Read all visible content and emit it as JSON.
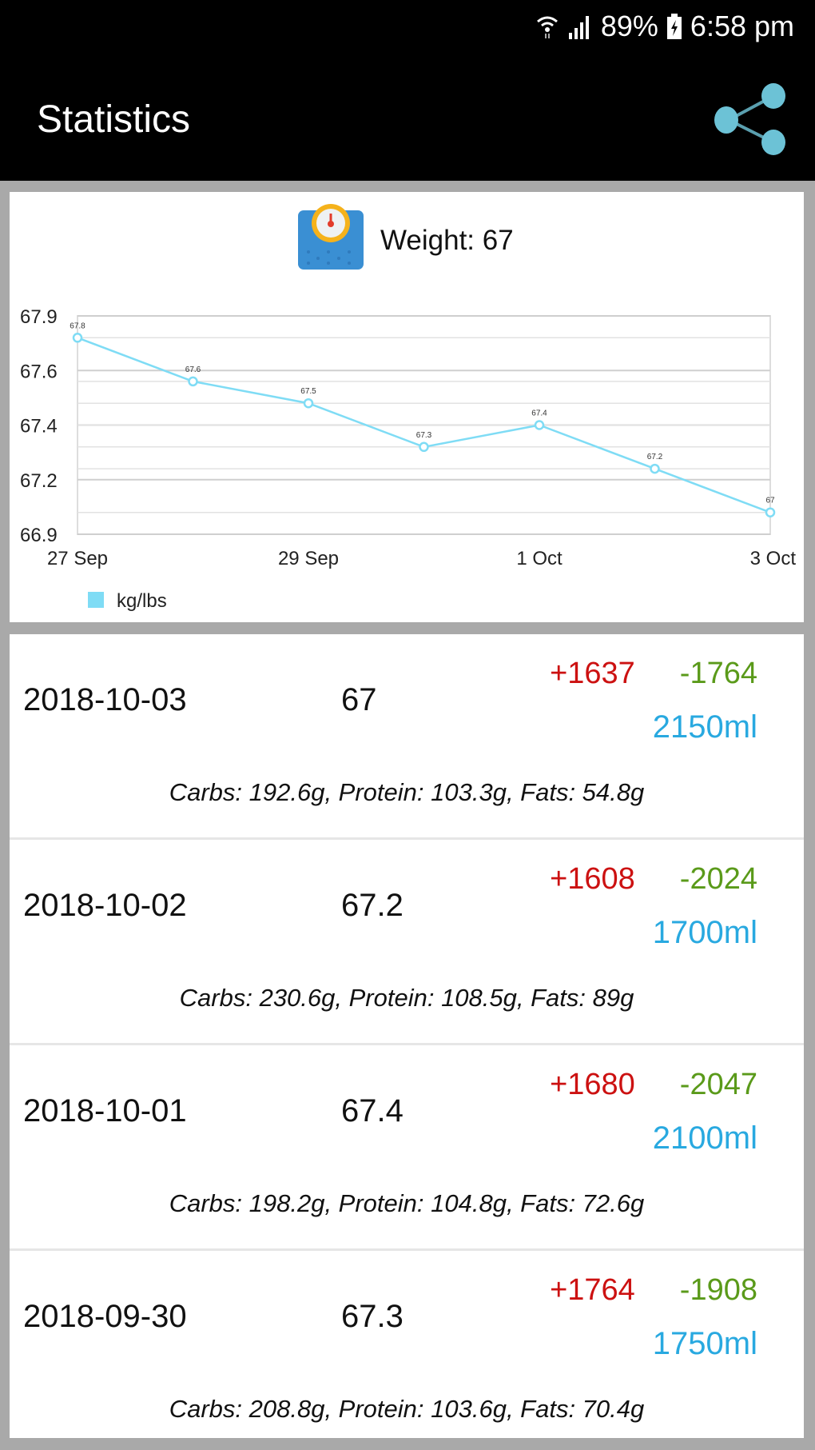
{
  "status_bar": {
    "battery": "89%",
    "time": "6:58 pm"
  },
  "app_bar": {
    "title": "Statistics"
  },
  "weight_header": {
    "label": "Weight: 67"
  },
  "colors": {
    "line": "#7fdcf5",
    "calories_in": "#cc1111",
    "calories_out": "#5a9a1a",
    "water": "#29a9e0"
  },
  "chart_data": {
    "type": "line",
    "title": "Weight: 67",
    "x": [
      "27 Sep",
      "28 Sep",
      "29 Sep",
      "30 Sep",
      "1 Oct",
      "2 Oct",
      "3 Oct"
    ],
    "x_tick_labels": [
      "27 Sep",
      "29 Sep",
      "1 Oct",
      "3 Oct"
    ],
    "x_tick_index": [
      0,
      2,
      4,
      6
    ],
    "series": [
      {
        "name": "kg/lbs",
        "values": [
          67.8,
          67.6,
          67.5,
          67.3,
          67.4,
          67.2,
          67
        ],
        "labels": [
          "67.8",
          "67.6",
          "67.5",
          "67.3",
          "67.4",
          "67.2",
          "67"
        ]
      }
    ],
    "y_ticks": [
      67.9,
      67.65,
      67.4,
      67.15,
      66.9
    ],
    "y_tick_labels": [
      "67.9",
      "67.6",
      "67.4",
      "67.2",
      "66.9"
    ],
    "ylim": [
      66.9,
      67.9
    ],
    "grid": true,
    "legend": "bottom-left"
  },
  "entries": [
    {
      "date": "2018-10-03",
      "weight": "67",
      "cal_in": "+1637",
      "cal_out": "-1764",
      "water": "2150ml",
      "macros": "Carbs: 192.6g, Protein: 103.3g, Fats: 54.8g"
    },
    {
      "date": "2018-10-02",
      "weight": "67.2",
      "cal_in": "+1608",
      "cal_out": "-2024",
      "water": "1700ml",
      "macros": "Carbs: 230.6g, Protein: 108.5g, Fats: 89g"
    },
    {
      "date": "2018-10-01",
      "weight": "67.4",
      "cal_in": "+1680",
      "cal_out": "-2047",
      "water": "2100ml",
      "macros": "Carbs: 198.2g, Protein: 104.8g, Fats: 72.6g"
    },
    {
      "date": "2018-09-30",
      "weight": "67.3",
      "cal_in": "+1764",
      "cal_out": "-1908",
      "water": "1750ml",
      "macros": "Carbs: 208.8g, Protein: 103.6g, Fats: 70.4g"
    }
  ]
}
